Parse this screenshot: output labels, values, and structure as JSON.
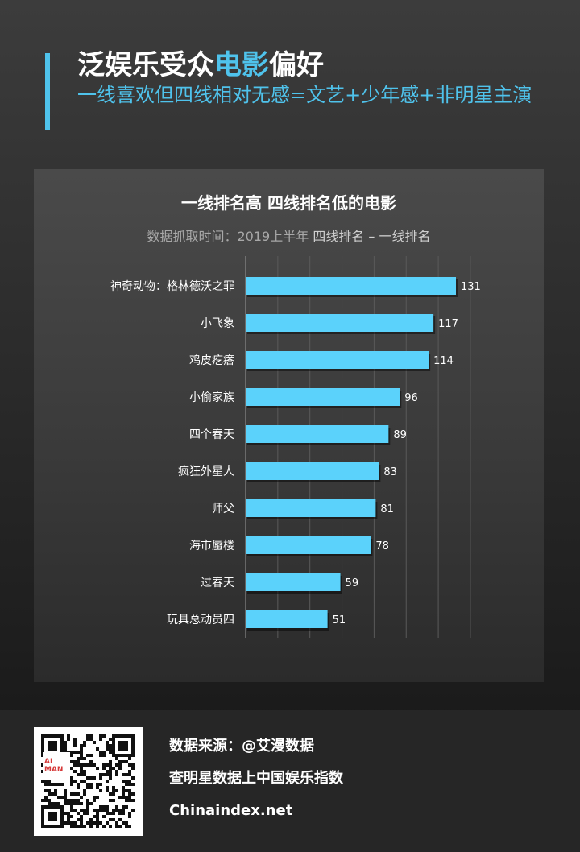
{
  "header": {
    "title_part1": "泛娱乐受众",
    "title_highlight": "电影",
    "title_part2": "偏好",
    "subtitle": "一线喜欢但四线相对无感=文艺+少年感+非明星主演"
  },
  "chart": {
    "title": "一线排名高 四线排名低的电影",
    "subtitle_muted": "数据抓取时间：2019上半年",
    "subtitle_metric": "四线排名 – 一线排名"
  },
  "chart_data": {
    "type": "bar",
    "orientation": "horizontal",
    "title": "一线排名高 四线排名低的电影",
    "categories": [
      "神奇动物：格林德沃之罪",
      "小飞象",
      "鸡皮疙瘩",
      "小偷家族",
      "四个春天",
      "疯狂外星人",
      "师父",
      "海市蜃楼",
      "过春天",
      "玩具总动员四"
    ],
    "values": [
      131,
      117,
      114,
      96,
      89,
      83,
      81,
      78,
      59,
      51
    ],
    "xlim": [
      0,
      140
    ],
    "grid": true,
    "bar_color": "#5bd2fb"
  },
  "footer": {
    "qr_logo_text": "AI MAN",
    "source": "数据来源：@艾漫数据",
    "slogan": "查明星数据上中国娱乐指数",
    "website": "Chinaindex.net"
  },
  "colors": {
    "accent": "#4fc3ec",
    "bar": "#5bd2fb"
  }
}
